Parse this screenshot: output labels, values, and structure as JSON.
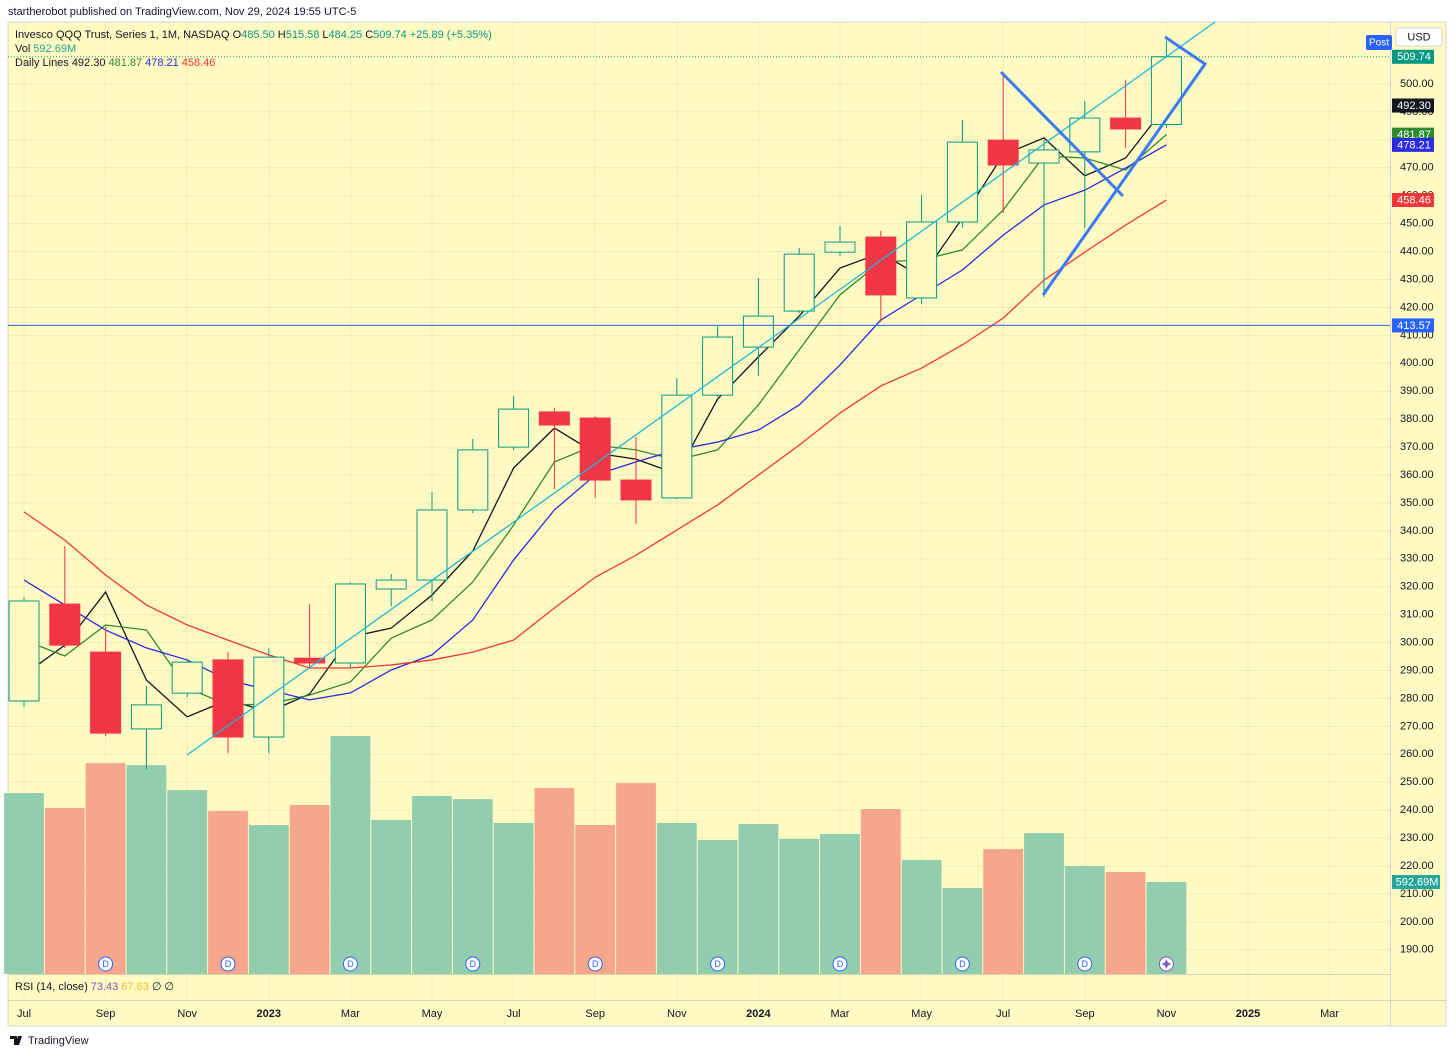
{
  "header": {
    "published": "startherobot published on TradingView.com, Nov 29, 2024 19:55 UTC-5"
  },
  "chart_data": {
    "type": "candlestick",
    "title": "Invesco QQQ Trust, Series 1, 1M, NASDAQ",
    "ohlc_legend": [
      {
        "key": "O",
        "value": "485.50"
      },
      {
        "key": "H",
        "value": "515.58"
      },
      {
        "key": "L",
        "value": "484.25"
      },
      {
        "key": "C",
        "value": "509.74"
      }
    ],
    "change": "+25.89 (+5.35%)",
    "currency": "USD",
    "post_button": "Post",
    "categories": [
      "Jul",
      null,
      "Sep",
      null,
      "Nov",
      null,
      "2023",
      null,
      "Mar",
      null,
      "May",
      null,
      "Jul",
      null,
      "Sep",
      null,
      "Nov",
      null,
      "2024",
      null,
      "Mar",
      null,
      "May",
      null,
      "Jul",
      null,
      "Sep",
      null,
      "Nov",
      null,
      "2025",
      null,
      "Mar"
    ],
    "open": [
      279.1,
      313.8,
      296.6,
      269.1,
      281.9,
      293.8,
      266.2,
      294.4,
      292.7,
      319.2,
      322.4,
      347.5,
      370.0,
      382.6,
      380.4,
      358.2,
      351.8,
      388.6,
      405.8,
      418.7,
      439.8,
      445.2,
      423.4,
      450.6,
      479.9,
      471.7,
      475.7,
      487.8,
      485.5,
      null,
      null,
      null,
      null
    ],
    "high": [
      316.3,
      334.6,
      305.6,
      284.4,
      293.8,
      296.6,
      298.0,
      313.8,
      321.5,
      324.6,
      353.9,
      372.9,
      388.3,
      384.0,
      381.0,
      373.6,
      394.7,
      413.4,
      430.5,
      441.3,
      449.2,
      447.4,
      460.3,
      487.1,
      503.9,
      479.9,
      493.9,
      501.4,
      515.58,
      null,
      null,
      null,
      null
    ],
    "low": [
      277.0,
      298.0,
      266.5,
      254.7,
      280.5,
      260.5,
      260.5,
      290.9,
      290.9,
      313.0,
      314.8,
      346.4,
      369.0,
      355.0,
      351.8,
      342.5,
      351.4,
      388.0,
      395.5,
      418.0,
      438.5,
      414.8,
      421.2,
      448.5,
      453.8,
      423.7,
      448.4,
      477.1,
      484.25,
      null,
      null,
      null,
      null
    ],
    "close": [
      314.9,
      299.1,
      267.6,
      277.7,
      293.0,
      266.2,
      294.8,
      292.7,
      321.0,
      322.4,
      347.5,
      369.0,
      383.6,
      377.9,
      358.2,
      351.1,
      388.6,
      409.4,
      416.9,
      439.1,
      443.4,
      424.5,
      450.6,
      479.2,
      471.0,
      476.4,
      487.8,
      483.9,
      509.74,
      null,
      null,
      null,
      null
    ],
    "close_label": "509.74",
    "up_color": "#089981",
    "down_color": "#f23645",
    "volume": {
      "name": "Vol",
      "values": [
        1166,
        1069,
        1359,
        1346,
        1185,
        1050,
        960,
        1089,
        1533,
        992,
        1147,
        1127,
        973,
        1198,
        960,
        1230,
        973,
        863,
        966,
        870,
        902,
        1063,
        734,
        554,
        805,
        908,
        696,
        657,
        592.69,
        null,
        null,
        null,
        null
      ],
      "last_label": "592.69M",
      "up_color": "#92cead",
      "down_color": "#f6a68b"
    },
    "lines_name": "Daily Lines",
    "series": [
      {
        "color": "#131722",
        "last_label": "492.30",
        "values": [
          288.4,
          299.1,
          318.1,
          286.6,
          273.4,
          279.5,
          275.2,
          281.6,
          302.0,
          305.2,
          317.0,
          332.8,
          362.5,
          376.8,
          367.9,
          365.7,
          360.4,
          387.2,
          402.3,
          416.9,
          434.1,
          439.5,
          430.9,
          452.0,
          474.6,
          480.7,
          467.1,
          473.5,
          492.3,
          null,
          null,
          null,
          null
        ]
      },
      {
        "color": "#2e8b2e",
        "last_label": "481.87",
        "values": [
          300.9,
          295.2,
          306.3,
          304.5,
          283.7,
          277.7,
          278.0,
          281.2,
          285.9,
          301.6,
          308.1,
          321.7,
          342.1,
          364.7,
          370.7,
          369.0,
          365.4,
          369.0,
          385.1,
          404.8,
          424.5,
          436.3,
          437.0,
          440.6,
          454.9,
          474.2,
          473.5,
          469.2,
          481.87,
          null,
          null,
          null,
          null
        ]
      },
      {
        "color": "#2b2be0",
        "last_label": "478.21",
        "values": [
          322.4,
          313.5,
          304.5,
          298.1,
          293.8,
          286.6,
          283.0,
          279.5,
          282.0,
          290.2,
          295.6,
          308.1,
          329.6,
          347.5,
          360.0,
          364.7,
          369.0,
          371.8,
          376.1,
          385.1,
          399.4,
          415.5,
          424.5,
          433.4,
          445.9,
          456.7,
          462.0,
          469.9,
          478.21,
          null,
          null,
          null,
          null
        ]
      },
      {
        "color": "#f23636",
        "last_label": "458.46",
        "values": [
          346.8,
          336.7,
          324.2,
          313.5,
          306.3,
          300.9,
          295.6,
          290.9,
          290.9,
          292.0,
          293.8,
          296.6,
          300.9,
          312.4,
          323.4,
          331.3,
          340.3,
          349.3,
          360.0,
          370.7,
          382.2,
          391.9,
          398.3,
          406.6,
          416.2,
          429.8,
          439.8,
          449.5,
          458.46,
          null,
          null,
          null,
          null
        ]
      }
    ],
    "hline": {
      "value": 413.57,
      "color": "#2962ff"
    },
    "dividends": {
      "label": "D",
      "index": [
        2,
        5,
        8,
        11,
        14,
        17,
        20,
        23,
        26
      ]
    },
    "rsi_legend": {
      "name": "RSI (14, close)",
      "values": [
        "73.43",
        "67.63",
        "∅",
        "∅"
      ],
      "colors": [
        "#7e57c2",
        "#f0c020",
        "#131722",
        "#131722"
      ]
    },
    "ylim": [
      181.35,
      522.2
    ],
    "yticks": [
      {
        "value": 190,
        "label": "190.00"
      },
      {
        "value": 200,
        "label": "200.00"
      },
      {
        "value": 210,
        "label": "210.00"
      },
      {
        "value": 220,
        "label": "220.00"
      },
      {
        "value": 230,
        "label": "230.00"
      },
      {
        "value": 240,
        "label": "240.00"
      },
      {
        "value": 250,
        "label": "250.00"
      },
      {
        "value": 260,
        "label": "260.00"
      },
      {
        "value": 270,
        "label": "270.00"
      },
      {
        "value": 280,
        "label": "280.00"
      },
      {
        "value": 290,
        "label": "290.00"
      },
      {
        "value": 300,
        "label": "300.00"
      },
      {
        "value": 310,
        "label": "310.00"
      },
      {
        "value": 320,
        "label": "320.00"
      },
      {
        "value": 330,
        "label": "330.00"
      },
      {
        "value": 340,
        "label": "340.00"
      },
      {
        "value": 350,
        "label": "350.00"
      },
      {
        "value": 360,
        "label": "360.00"
      },
      {
        "value": 370,
        "label": "370.00"
      },
      {
        "value": 380,
        "label": "380.00"
      },
      {
        "value": 390,
        "label": "390.00"
      },
      {
        "value": 400,
        "label": "400.00"
      },
      {
        "value": 410,
        "label": "410.00"
      },
      {
        "value": 420,
        "label": "420.00"
      },
      {
        "value": 430,
        "label": "430.00"
      },
      {
        "value": 440,
        "label": "440.00"
      },
      {
        "value": 450,
        "label": "450.00"
      },
      {
        "value": 460,
        "label": "460.00"
      },
      {
        "value": 470,
        "label": "470.00"
      },
      {
        "value": 480,
        "label": "480.00"
      },
      {
        "value": 490,
        "label": "490.00"
      },
      {
        "value": 500,
        "label": "500.00"
      }
    ],
    "grid": true
  },
  "footer": {
    "logo": "TradingView"
  }
}
